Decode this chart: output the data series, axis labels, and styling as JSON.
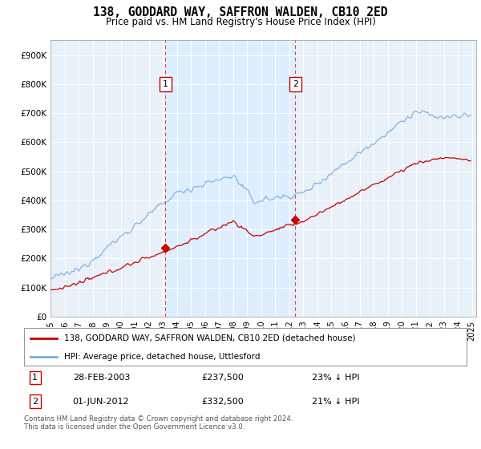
{
  "title": "138, GODDARD WAY, SAFFRON WALDEN, CB10 2ED",
  "subtitle": "Price paid vs. HM Land Registry's House Price Index (HPI)",
  "ylabel_ticks": [
    "£0",
    "£100K",
    "£200K",
    "£300K",
    "£400K",
    "£500K",
    "£600K",
    "£700K",
    "£800K",
    "£900K"
  ],
  "ytick_values": [
    0,
    100000,
    200000,
    300000,
    400000,
    500000,
    600000,
    700000,
    800000,
    900000
  ],
  "ylim": [
    0,
    950000
  ],
  "sale1_year": 2003.167,
  "sale1_price": 237500,
  "sale2_year": 2012.417,
  "sale2_price": 332500,
  "legend_red_label": "138, GODDARD WAY, SAFFRON WALDEN, CB10 2ED (detached house)",
  "legend_blue_label": "HPI: Average price, detached house, Uttlesford",
  "table_row1": [
    "1",
    "28-FEB-2003",
    "£237,500",
    "23% ↓ HPI"
  ],
  "table_row2": [
    "2",
    "01-JUN-2012",
    "£332,500",
    "21% ↓ HPI"
  ],
  "footer": "Contains HM Land Registry data © Crown copyright and database right 2024.\nThis data is licensed under the Open Government Licence v3.0.",
  "red_color": "#cc0000",
  "blue_color": "#7aade0",
  "highlight_color": "#ddeeff",
  "background_chart": "#e8f0f8",
  "vline_color": "#dd4444",
  "grid_color": "#cccccc",
  "box_color": "#cc0000"
}
